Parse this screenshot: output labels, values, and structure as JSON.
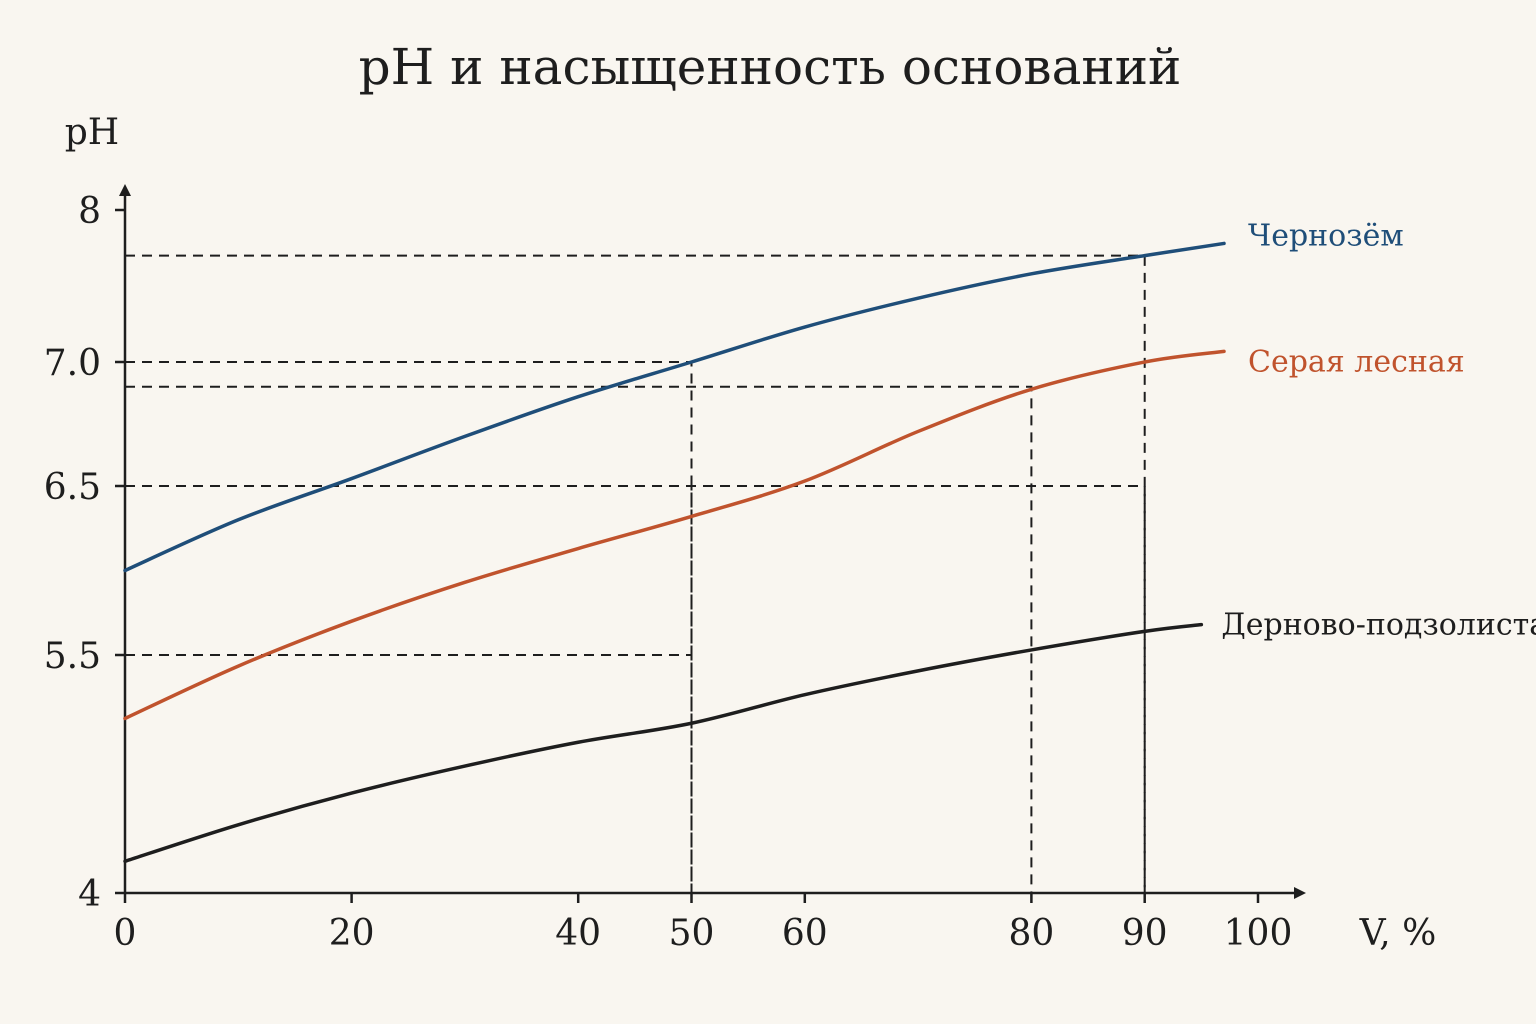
{
  "chart_data": {
    "type": "line",
    "title": "pH и насыщенность оснований",
    "ylabel": "pH",
    "xlabel": "V, %",
    "xlim": [
      0,
      100
    ],
    "ylim": [
      4,
      8
    ],
    "x_ticks": [
      {
        "value": 0,
        "label": "0"
      },
      {
        "value": 20,
        "label": "20"
      },
      {
        "value": 40,
        "label": "40"
      },
      {
        "value": 50,
        "label": "50"
      },
      {
        "value": 60,
        "label": "60"
      },
      {
        "value": 80,
        "label": "80"
      },
      {
        "value": 90,
        "label": "90"
      },
      {
        "value": 100,
        "label": "100"
      }
    ],
    "y_ticks": [
      {
        "value": 4,
        "label": "4"
      },
      {
        "value": 5.5,
        "label": "5.5"
      },
      {
        "value": 6.5,
        "label": "6.5"
      },
      {
        "value": 7.0,
        "label": "7.0"
      },
      {
        "value": 8,
        "label": "8"
      }
    ],
    "grid": false,
    "series": [
      {
        "name": "Чернозём",
        "color": "#1f4e79",
        "x": [
          0,
          10,
          20,
          30,
          40,
          50,
          60,
          70,
          80,
          90,
          97
        ],
        "y": [
          6.0,
          6.3,
          6.53,
          6.7,
          6.86,
          7.0,
          7.23,
          7.42,
          7.58,
          7.7,
          7.78
        ]
      },
      {
        "name": "Серая лесная",
        "color": "#c0532d",
        "x": [
          0,
          10,
          20,
          30,
          40,
          50,
          60,
          70,
          80,
          90,
          97
        ],
        "y": [
          5.1,
          5.43,
          5.7,
          5.93,
          6.13,
          6.32,
          6.52,
          6.72,
          6.89,
          7.0,
          7.07
        ]
      },
      {
        "name": "Дерново-подзолистая",
        "color": "#1e1e1e",
        "x": [
          0,
          10,
          20,
          30,
          40,
          50,
          60,
          70,
          80,
          90,
          95
        ],
        "y": [
          4.2,
          4.43,
          4.63,
          4.8,
          4.95,
          5.07,
          5.25,
          5.4,
          5.53,
          5.64,
          5.68
        ]
      }
    ],
    "guides": [
      {
        "x": 50,
        "y": 7.0
      },
      {
        "x": 50,
        "y": 6.5
      },
      {
        "x": 50,
        "y": 5.5
      },
      {
        "x": 80,
        "y": 6.9
      },
      {
        "x": 90,
        "y": 7.7
      },
      {
        "x": 90,
        "y": 6.5
      }
    ]
  }
}
